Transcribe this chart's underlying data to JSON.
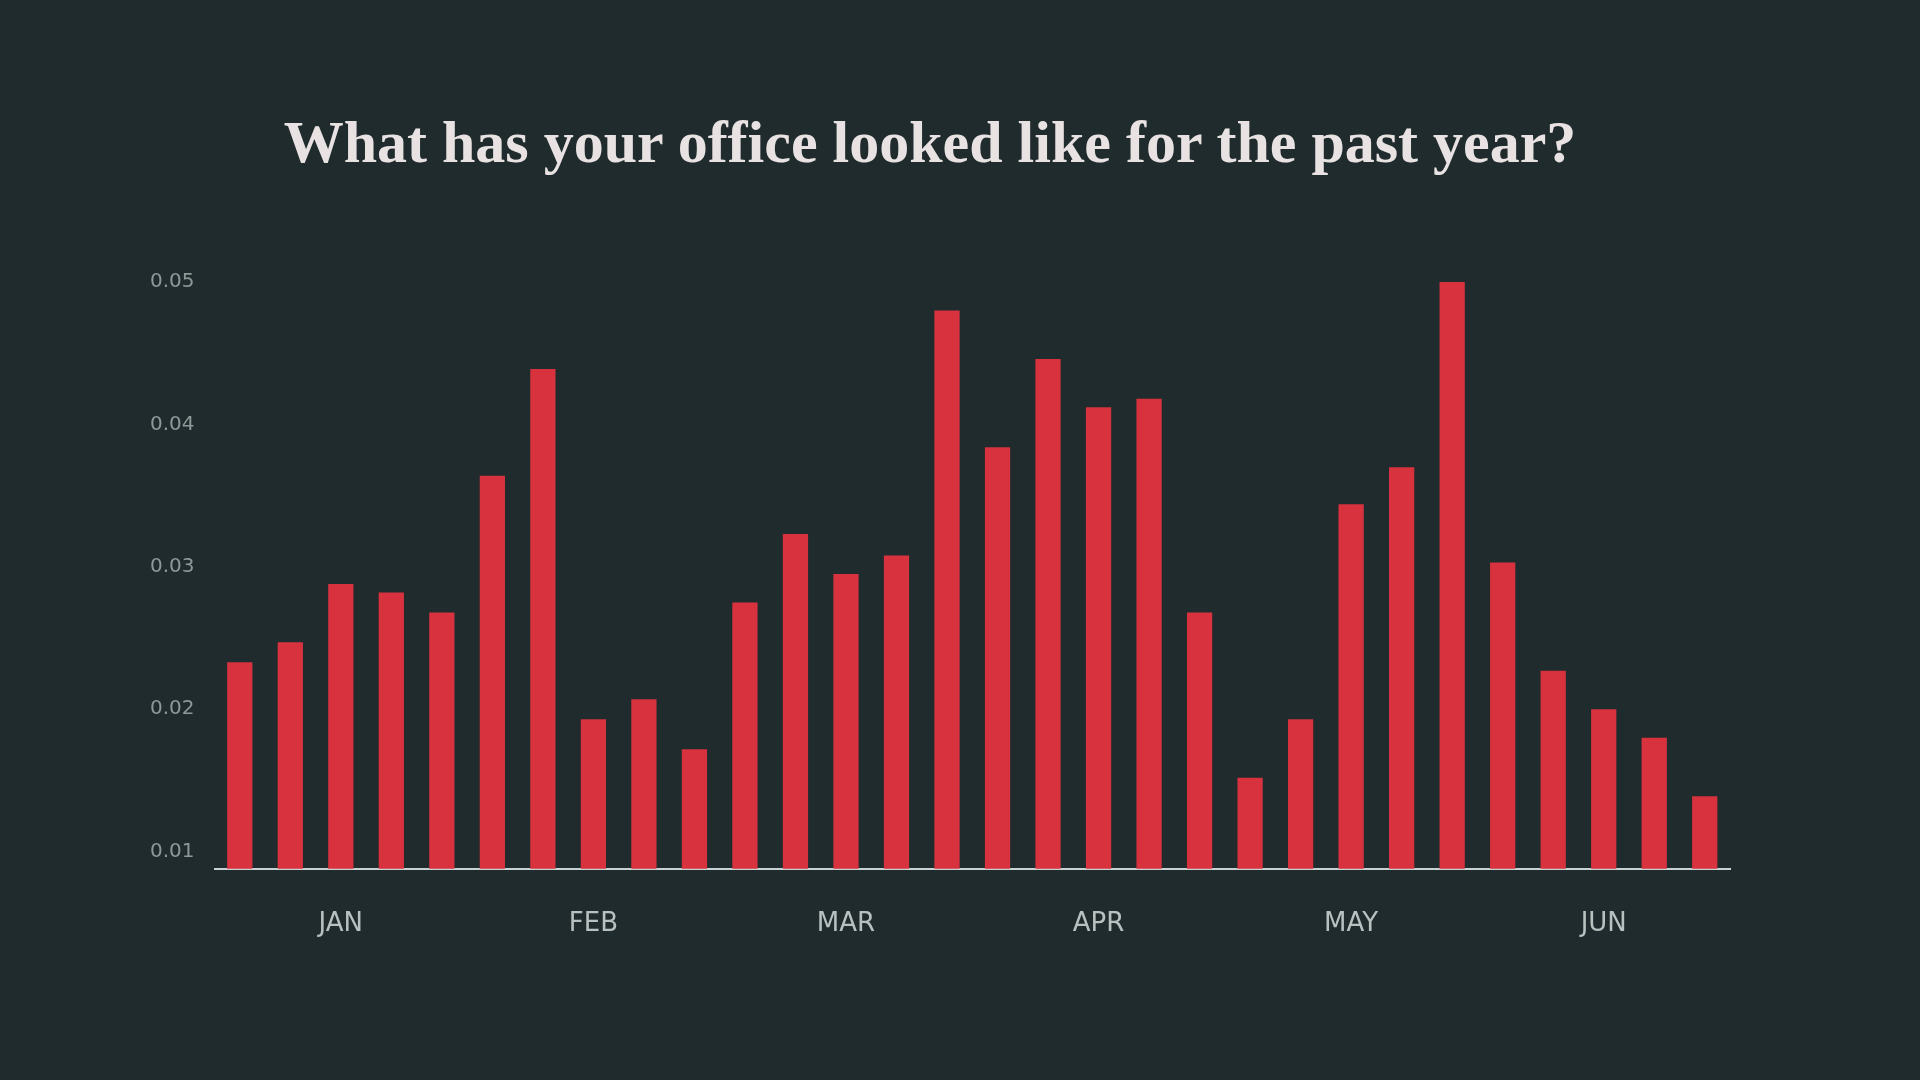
{
  "chart_data": {
    "type": "bar",
    "title": "What has your office looked like for the past year?",
    "categories": [
      null,
      null,
      "JAN",
      null,
      null,
      null,
      null,
      "FEB",
      null,
      null,
      null,
      null,
      "MAR",
      null,
      null,
      null,
      null,
      "APR",
      null,
      null,
      null,
      null,
      "MAY",
      null,
      null,
      null,
      null,
      "JUN",
      null,
      null
    ],
    "values": [
      0.0233,
      0.0247,
      0.0288,
      0.0282,
      0.0268,
      0.0364,
      0.0439,
      0.0193,
      0.0207,
      0.0172,
      0.0275,
      0.0323,
      0.0295,
      0.0308,
      0.048,
      0.0384,
      0.0446,
      0.0412,
      0.0418,
      0.0268,
      0.0152,
      0.0193,
      0.0344,
      0.037,
      0.05,
      0.0303,
      0.0227,
      0.02,
      0.018,
      0.0139
    ],
    "color": "#d8323f",
    "ylim": [
      0.0088,
      0.05
    ],
    "yticks": [
      {
        "value": 0.01,
        "label": "0.01"
      },
      {
        "value": 0.02,
        "label": "0.02"
      },
      {
        "value": 0.03,
        "label": "0.03"
      },
      {
        "value": 0.04,
        "label": "0.04"
      },
      {
        "value": 0.05,
        "label": "0.05"
      }
    ],
    "grid": false
  }
}
